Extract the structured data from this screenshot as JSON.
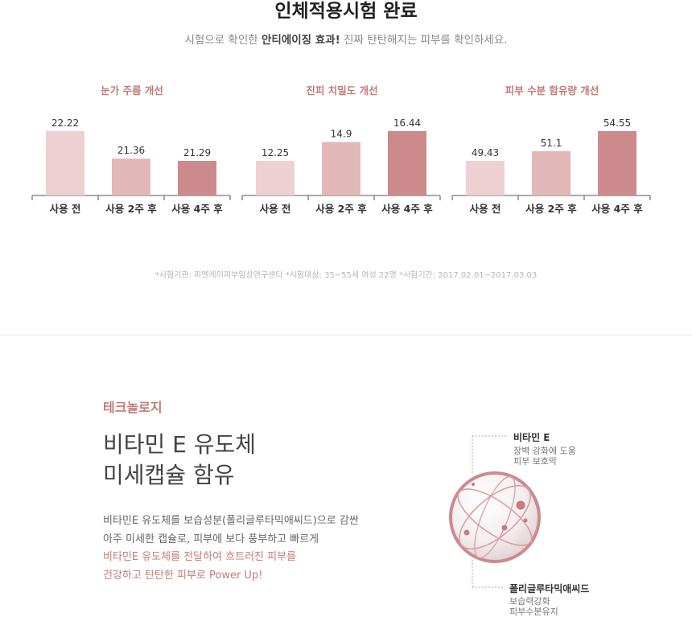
{
  "header": {
    "title": "인체적용시험 완료",
    "subtitle_pre": "시험으로 확인한 ",
    "subtitle_bold": "안티에이징 효과!",
    "subtitle_post": " 진짜 탄탄해지는 피부를 확인하세요."
  },
  "chart_data": [
    {
      "type": "bar",
      "title": "눈가 주름 개선",
      "categories": [
        "사용 전",
        "사용 2주 후",
        "사용 4주 후"
      ],
      "values": [
        22.22,
        21.36,
        21.29
      ],
      "colors": [
        "#eed0d2",
        "#e2b7b8",
        "#cd8a8c"
      ]
    },
    {
      "type": "bar",
      "title": "진피 치밀도 개선",
      "categories": [
        "사용 전",
        "사용 2주 후",
        "사용 4주 후"
      ],
      "values": [
        12.25,
        14.9,
        16.44
      ],
      "colors": [
        "#eed0d2",
        "#e2b7b8",
        "#cd8a8c"
      ]
    },
    {
      "type": "bar",
      "title": "피부 수분 함유량 개선",
      "categories": [
        "사용 전",
        "사용 2주 후",
        "사용 4주 후"
      ],
      "values": [
        49.43,
        51.1,
        54.55
      ],
      "colors": [
        "#eed0d2",
        "#e2b7b8",
        "#cd8a8c"
      ]
    }
  ],
  "footnote": "*시험기관: 피엔케이피부임상연구센타   *시험대상: 35~55세 여성 22명   *시험기간: 2017.02.01~2017.03.03",
  "technology": {
    "label": "테크놀로지",
    "headline_line1": "비타민 E 유도체",
    "headline_line2": "미세캡슐 함유",
    "desc_line1": "비타민E 유도체를 보습성분(폴리글루타믹애씨드)으로 감싼",
    "desc_line2": "아주 미세한 캡슐로, 피부에 보다 풍부하고 빠르게",
    "desc_line3": "비타민E 유도체를 전달하여 흐트러진 피부를",
    "desc_line4": "건강하고 탄탄한 피부로 Power Up!",
    "annotation_top": {
      "title": "비타민 E",
      "line1": "장벽 강화에 도움",
      "line2": "피부 보호막"
    },
    "annotation_bottom": {
      "title": "폴리글루타믹애씨드",
      "line1": "보습력강화",
      "line2": "피부수분유지"
    }
  }
}
